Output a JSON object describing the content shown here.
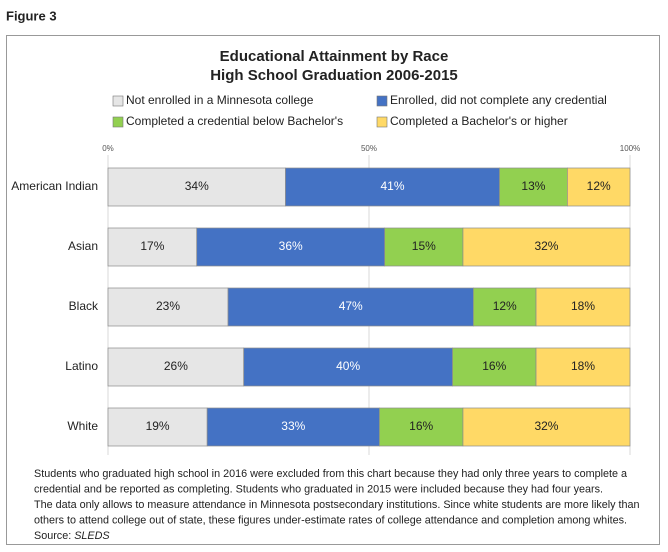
{
  "figure_label": "Figure 3",
  "chart_data": {
    "type": "stacked-bar-horizontal",
    "title": "Educational Attainment by Race",
    "subtitle": "High School Graduation 2006-2015",
    "categories": [
      "American Indian",
      "Asian",
      "Black",
      "Latino",
      "White"
    ],
    "series": [
      {
        "name": "Not enrolled in a Minnesota college",
        "color": "#e6e6e6",
        "values": [
          34,
          17,
          23,
          26,
          19
        ],
        "value_labels": [
          "34%",
          "17%",
          "23%",
          "26%",
          "19%"
        ]
      },
      {
        "name": "Enrolled, did not complete any credential",
        "color": "#4472c4",
        "values": [
          41,
          36,
          47,
          40,
          33
        ],
        "value_labels": [
          "41%",
          "36%",
          "47%",
          "40%",
          "33%"
        ]
      },
      {
        "name": "Completed a credential below Bachelor's",
        "color": "#92d050",
        "values": [
          13,
          15,
          12,
          16,
          16
        ],
        "value_labels": [
          "13%",
          "15%",
          "12%",
          "16%",
          "16%"
        ]
      },
      {
        "name": "Completed a Bachelor's or higher",
        "color": "#ffd966",
        "values": [
          12,
          32,
          18,
          18,
          32
        ],
        "value_labels": [
          "12%",
          "32%",
          "18%",
          "18%",
          "32%"
        ]
      }
    ],
    "xlim": [
      0,
      100
    ],
    "xticks": [
      {
        "value": 0,
        "label": "0%"
      },
      {
        "value": 50,
        "label": "50%"
      },
      {
        "value": 100,
        "label": "100%"
      }
    ],
    "grid": true,
    "legend": "top"
  },
  "notes": [
    "Students who graduated high school in 2016 were excluded from this chart because they had only three years to complete a",
    "credential and be reported as completing. Students who graduated in 2015 were included because they had four years.",
    "The data only allows to measure attendance in Minnesota postsecondary institutions. Since white students are more likely than",
    "others to attend college out of state, these figures under-estimate rates of college attendance and completion among whites."
  ],
  "source_label": "Source:",
  "source": "SLEDS"
}
